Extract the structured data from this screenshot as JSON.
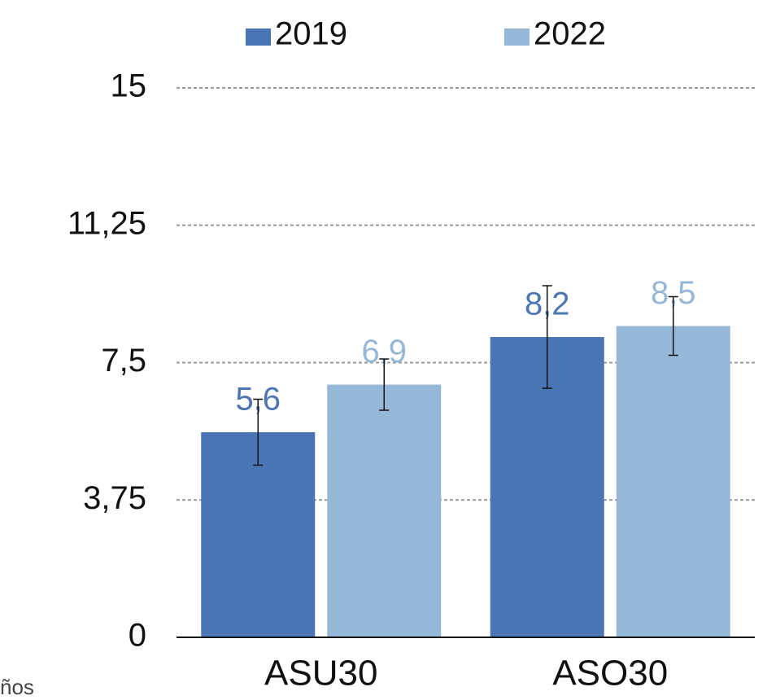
{
  "chart_data": {
    "type": "bar",
    "categories": [
      "ASU30",
      "ASO30"
    ],
    "series": [
      {
        "name": "2019",
        "color": "#4a76b6",
        "values": [
          5.6,
          8.2
        ],
        "value_labels": [
          "5,6",
          "8,2"
        ],
        "errors": [
          0.9,
          1.4
        ]
      },
      {
        "name": "2022",
        "color": "#95b8d9",
        "values": [
          6.9,
          8.5
        ],
        "value_labels": [
          "6,9",
          "8,5"
        ],
        "errors": [
          0.7,
          0.8
        ]
      }
    ],
    "ylim": [
      0,
      15
    ],
    "yticks": [
      0,
      {
        "value": 3.75,
        "label": "3,75"
      },
      {
        "value": 7.5,
        "label": "7,5"
      },
      {
        "value": 11.25,
        "label": "11,25"
      },
      15
    ],
    "grid": true,
    "legend": "top",
    "footnote": "ños"
  }
}
